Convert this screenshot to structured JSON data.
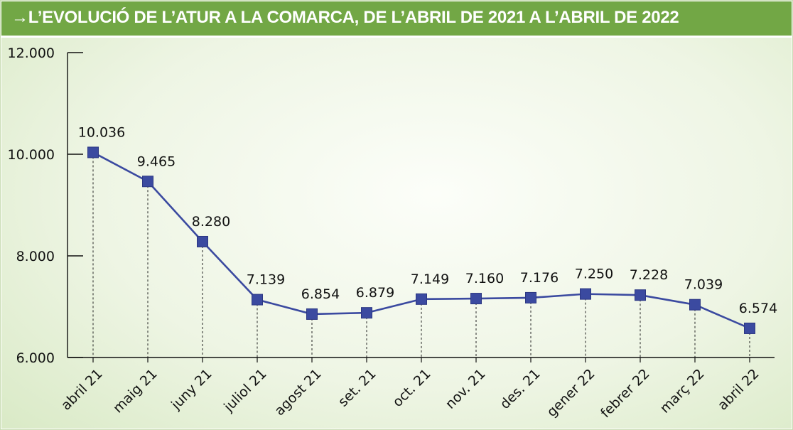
{
  "header": {
    "arrow": "→",
    "title": "L’EVOLUCIÓ DE L’ATUR A LA COMARCA, DE L’ABRIL DE 2021 A L’ABRIL DE 2022"
  },
  "colors": {
    "header_bg": "#72a745",
    "line": "#3b4aa0",
    "marker": "#3b4aa0"
  },
  "chart_data": {
    "type": "line",
    "title": "L’EVOLUCIÓ DE L’ATUR A LA COMARCA, DE L’ABRIL DE 2021 A L’ABRIL DE 2022",
    "xlabel": "",
    "ylabel": "",
    "ylim": [
      6000,
      12000
    ],
    "yticks": [
      6000,
      8000,
      10000,
      12000
    ],
    "ytick_labels": [
      "6.000",
      "8.000",
      "10.000",
      "12.000"
    ],
    "categories": [
      "abril 21",
      "maig 21",
      "juny 21",
      "juliol 21",
      "agost 21",
      "set. 21",
      "oct. 21",
      "nov. 21",
      "des. 21",
      "gener 22",
      "febrer 22",
      "març 22",
      "abril 22"
    ],
    "values": [
      10036,
      9465,
      8280,
      7139,
      6854,
      6879,
      7149,
      7160,
      7176,
      7250,
      7228,
      7039,
      6574
    ],
    "value_labels": [
      "10.036",
      "9.465",
      "8.280",
      "7.139",
      "6.854",
      "6.879",
      "7.149",
      "7.160",
      "7.176",
      "7.250",
      "7.228",
      "7.039",
      "6.574"
    ],
    "grid": false,
    "legend": "none"
  }
}
